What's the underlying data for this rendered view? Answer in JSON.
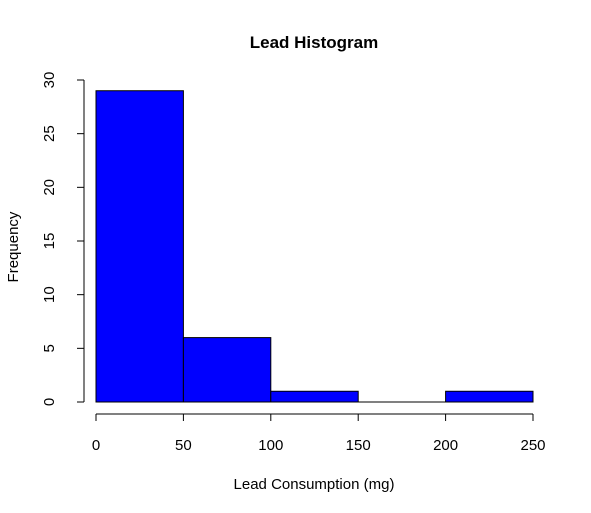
{
  "chart_data": {
    "type": "bar",
    "title": "Lead Histogram",
    "xlabel": "Lead Consumption (mg)",
    "ylabel": "Frequency",
    "bins": [
      {
        "start": 0,
        "end": 50,
        "count": 29
      },
      {
        "start": 50,
        "end": 100,
        "count": 6
      },
      {
        "start": 100,
        "end": 150,
        "count": 1
      },
      {
        "start": 150,
        "end": 200,
        "count": 0
      },
      {
        "start": 200,
        "end": 250,
        "count": 1
      }
    ],
    "xlim": [
      0,
      250
    ],
    "ylim": [
      0,
      30
    ],
    "x_ticks": [
      "0",
      "50",
      "100",
      "150",
      "200",
      "250"
    ],
    "y_ticks": [
      "0",
      "5",
      "10",
      "15",
      "20",
      "25",
      "30"
    ],
    "bar_color": "#0000ff",
    "bar_edge_color": "#000000",
    "grid": false
  }
}
